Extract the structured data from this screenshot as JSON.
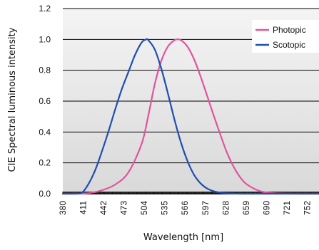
{
  "chart_data": {
    "type": "line",
    "xlabel": "Wavelength [nm]",
    "ylabel": "CIE Spectral luminous intensity",
    "xlim": [
      380,
      770
    ],
    "ylim": [
      0,
      1.2
    ],
    "yticks": [
      "0.0",
      "0.2",
      "0.4",
      "0.6",
      "0.8",
      "1.0",
      "1.2"
    ],
    "xticks": [
      "380",
      "411",
      "442",
      "473",
      "504",
      "535",
      "566",
      "597",
      "628",
      "659",
      "690",
      "721",
      "752"
    ],
    "grid": "horizontal",
    "legend_position": "top-right",
    "series": [
      {
        "name": "Photopic",
        "color": "#e0559d",
        "x": [
          380,
          400,
          420,
          440,
          460,
          480,
          500,
          510,
          520,
          530,
          540,
          550,
          555,
          560,
          570,
          580,
          590,
          600,
          610,
          620,
          630,
          640,
          650,
          660,
          680,
          700,
          720,
          740,
          770
        ],
        "y": [
          0.0,
          0.0004,
          0.004,
          0.023,
          0.06,
          0.139,
          0.323,
          0.503,
          0.71,
          0.862,
          0.954,
          0.995,
          1.0,
          0.995,
          0.952,
          0.87,
          0.757,
          0.631,
          0.503,
          0.381,
          0.265,
          0.175,
          0.107,
          0.061,
          0.017,
          0.004,
          0.001,
          0.0,
          0.0
        ]
      },
      {
        "name": "Scotopic",
        "color": "#1f4fae",
        "x": [
          380,
          400,
          410,
          420,
          430,
          440,
          450,
          460,
          470,
          480,
          490,
          500,
          507,
          510,
          520,
          530,
          540,
          550,
          560,
          570,
          580,
          590,
          600,
          610,
          620,
          630,
          640,
          660,
          700,
          770
        ],
        "y": [
          0.0,
          0.0,
          0.01,
          0.07,
          0.16,
          0.28,
          0.41,
          0.55,
          0.68,
          0.79,
          0.9,
          0.98,
          1.0,
          0.996,
          0.935,
          0.81,
          0.65,
          0.48,
          0.33,
          0.21,
          0.121,
          0.066,
          0.033,
          0.016,
          0.007,
          0.003,
          0.001,
          0.0,
          0.0,
          0.0
        ]
      }
    ]
  }
}
